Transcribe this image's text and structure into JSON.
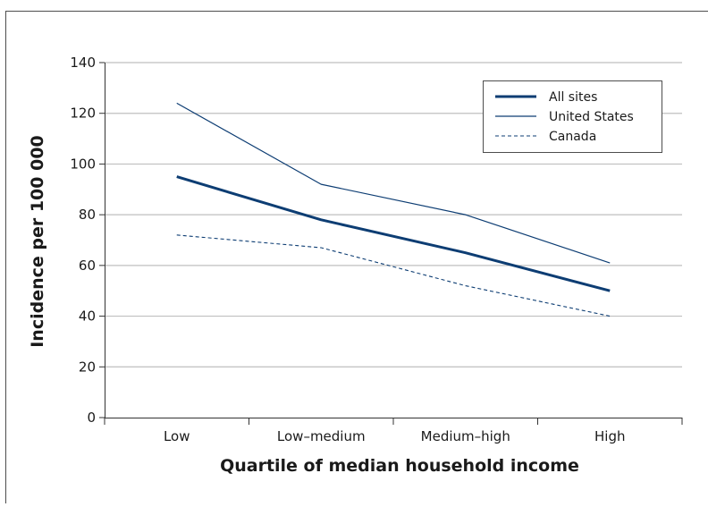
{
  "chart_data": {
    "type": "line",
    "xlabel": "Quartile of median household income",
    "ylabel": "Incidence per 100 000",
    "categories": [
      "Low",
      "Low–medium",
      "Medium–high",
      "High"
    ],
    "ylim": [
      0,
      140
    ],
    "yticks": [
      0,
      20,
      40,
      60,
      80,
      100,
      120,
      140
    ],
    "grid": true,
    "legend_position": "top-right",
    "series": [
      {
        "name": "All sites",
        "values": [
          95,
          78,
          65,
          50
        ],
        "color": "#0d3d73",
        "style": "thick-solid"
      },
      {
        "name": "United States",
        "values": [
          124,
          92,
          80,
          61
        ],
        "color": "#0d3d73",
        "style": "thin-solid"
      },
      {
        "name": "Canada",
        "values": [
          72,
          67,
          52,
          40
        ],
        "color": "#0d3d73",
        "style": "dashed"
      }
    ]
  },
  "colors": {
    "frame": "#4d4d4d",
    "grid": "#bfbfbf",
    "plot_background": "#dcdcdc",
    "series": "#0d3d73"
  }
}
